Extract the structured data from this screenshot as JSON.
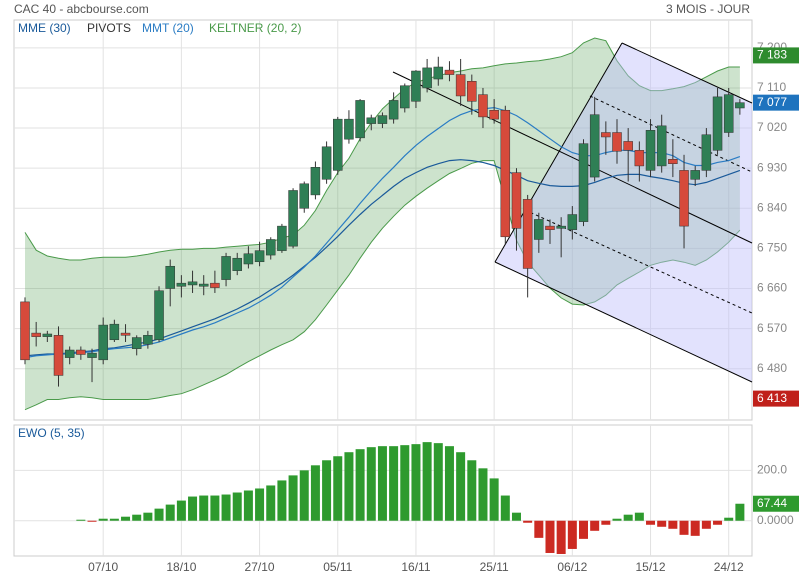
{
  "header": {
    "title": "CAC 40 - abcbourse.com",
    "period": "3 MOIS - JOUR"
  },
  "chart_data": [
    {
      "type": "candlestick",
      "categories": [
        null,
        null,
        null,
        null,
        null,
        null,
        null,
        "07/10",
        null,
        null,
        null,
        null,
        null,
        null,
        "18/10",
        null,
        null,
        null,
        null,
        null,
        null,
        "27/10",
        null,
        null,
        null,
        null,
        null,
        null,
        "05/11",
        null,
        null,
        null,
        null,
        null,
        null,
        "16/11",
        null,
        null,
        null,
        null,
        null,
        null,
        "25/11",
        null,
        null,
        null,
        null,
        null,
        null,
        "06/12",
        null,
        null,
        null,
        null,
        null,
        null,
        "15/12",
        null,
        null,
        null,
        null,
        null,
        null,
        "24/12",
        null
      ],
      "open": [
        6630,
        6560,
        6552,
        6555,
        6505,
        6522,
        6505,
        6500,
        6545,
        6560,
        6525,
        6535,
        6545,
        6660,
        6665,
        6668,
        6665,
        6672,
        6680,
        6700,
        6715,
        6720,
        6735,
        6745,
        6755,
        6840,
        6870,
        6905,
        6925,
        6995,
        6998,
        7030,
        7030,
        7040,
        7065,
        7080,
        7110,
        7130,
        7150,
        7140,
        7125,
        7095,
        7060,
        7060,
        6920,
        6860,
        6770,
        6800,
        6795,
        6792,
        6810,
        6910,
        7010,
        7010,
        6990,
        6970,
        6925,
        6935,
        6950,
        6925,
        6905,
        6925,
        6970,
        7010,
        7065
      ],
      "high": [
        6640,
        6585,
        6565,
        6575,
        6530,
        6530,
        6525,
        6595,
        6590,
        6580,
        6555,
        6565,
        6665,
        6725,
        6690,
        6700,
        6690,
        6700,
        6740,
        6740,
        6755,
        6765,
        6775,
        6805,
        6885,
        6900,
        6945,
        6990,
        7045,
        7060,
        7085,
        7050,
        7055,
        7100,
        7120,
        7150,
        7175,
        7180,
        7170,
        7175,
        7140,
        7110,
        7085,
        7070,
        6930,
        6870,
        6830,
        6815,
        6820,
        6845,
        6995,
        7090,
        7035,
        7040,
        7020,
        6990,
        7040,
        7050,
        6995,
        6960,
        6935,
        7020,
        7110,
        7110,
        7085
      ],
      "low": [
        6490,
        6530,
        6540,
        6440,
        6490,
        6500,
        6450,
        6490,
        6540,
        6540,
        6510,
        6525,
        6540,
        6620,
        6640,
        6650,
        6645,
        6650,
        6665,
        6690,
        6705,
        6710,
        6725,
        6740,
        6750,
        6830,
        6860,
        6895,
        6915,
        6985,
        6990,
        7015,
        7020,
        7030,
        7055,
        7065,
        7100,
        7115,
        7125,
        7070,
        7050,
        7020,
        7030,
        6760,
        6745,
        6640,
        6740,
        6760,
        6730,
        6770,
        6800,
        6900,
        6960,
        6940,
        6900,
        6900,
        6910,
        6920,
        6910,
        6750,
        6890,
        6910,
        6960,
        7000,
        7050
      ],
      "close": [
        6500,
        6552,
        6558,
        6465,
        6522,
        6512,
        6515,
        6578,
        6580,
        6555,
        6550,
        6555,
        6655,
        6710,
        6672,
        6675,
        6670,
        6662,
        6732,
        6728,
        6738,
        6745,
        6770,
        6800,
        6880,
        6895,
        6932,
        6978,
        7040,
        7040,
        7082,
        7043,
        7048,
        7082,
        7115,
        7148,
        7155,
        7157,
        7140,
        7092,
        7080,
        7045,
        7040,
        6776,
        6795,
        6705,
        6815,
        6792,
        6800,
        6826,
        6985,
        7050,
        7000,
        6968,
        6970,
        6935,
        7015,
        7025,
        6940,
        6800,
        6925,
        7005,
        7090,
        7095,
        7077
      ],
      "up_color": "#2f7f55",
      "down_color": "#d64a3b",
      "series": [
        {
          "name": "MME (30)",
          "color": "#1a5a9a",
          "values": [
            6509,
            6511,
            6513,
            6513,
            6516,
            6518,
            6520,
            6525,
            6527,
            6531,
            6536,
            6540,
            6547,
            6556,
            6565,
            6574,
            6583,
            6592,
            6603,
            6614,
            6627,
            6641,
            6657,
            6672,
            6690,
            6710,
            6730,
            6753,
            6777,
            6802,
            6826,
            6849,
            6869,
            6889,
            6907,
            6920,
            6932,
            6940,
            6947,
            6949,
            6947,
            6943,
            6936,
            6925,
            6914,
            6902,
            6896,
            6891,
            6889,
            6889,
            6891,
            6898,
            6907,
            6914,
            6916,
            6916,
            6911,
            6907,
            6902,
            6896,
            6893,
            6898,
            6907,
            6916,
            6925
          ]
        },
        {
          "name": "MMT (20)",
          "color": "#2a7cc4",
          "values": [
            6505,
            6509,
            6511,
            6513,
            6513,
            6516,
            6518,
            6522,
            6525,
            6527,
            6529,
            6534,
            6540,
            6549,
            6558,
            6567,
            6574,
            6583,
            6594,
            6605,
            6616,
            6630,
            6645,
            6663,
            6686,
            6708,
            6733,
            6762,
            6791,
            6820,
            6851,
            6880,
            6907,
            6932,
            6958,
            6981,
            7001,
            7019,
            7037,
            7050,
            7059,
            7063,
            7066,
            7059,
            7048,
            7032,
            7014,
            6996,
            6978,
            6965,
            6958,
            6958,
            6965,
            6970,
            6970,
            6965,
            6965,
            6965,
            6958,
            6943,
            6936,
            6936,
            6943,
            6947,
            6956
          ]
        }
      ],
      "band": {
        "name": "KELTNER (20, 2)",
        "color": "#4a9a4a",
        "upper": [
          6786,
          6746,
          6733,
          6728,
          6724,
          6724,
          6728,
          6730,
          6730,
          6730,
          6733,
          6737,
          6742,
          6746,
          6748,
          6748,
          6750,
          6750,
          6753,
          6755,
          6757,
          6759,
          6764,
          6773,
          6780,
          6802,
          6835,
          6880,
          6920,
          6952,
          6996,
          7032,
          7063,
          7086,
          7108,
          7122,
          7131,
          7137,
          7144,
          7148,
          7153,
          7155,
          7160,
          7164,
          7166,
          7169,
          7171,
          7175,
          7180,
          7189,
          7211,
          7222,
          7216,
          7171,
          7137,
          7115,
          7104,
          7104,
          7108,
          7113,
          7122,
          7135,
          7148,
          7157,
          7157
        ],
        "lower": [
          6388,
          6399,
          6411,
          6411,
          6415,
          6417,
          6415,
          6411,
          6411,
          6411,
          6411,
          6411,
          6415,
          6420,
          6424,
          6433,
          6444,
          6455,
          6467,
          6482,
          6496,
          6509,
          6522,
          6534,
          6545,
          6563,
          6590,
          6623,
          6657,
          6690,
          6728,
          6764,
          6795,
          6822,
          6847,
          6867,
          6885,
          6902,
          6918,
          6929,
          6941,
          6947,
          6947,
          6858,
          6768,
          6719,
          6690,
          6661,
          6639,
          6625,
          6623,
          6630,
          6645,
          6668,
          6683,
          6697,
          6712,
          6719,
          6724,
          6719,
          6712,
          6724,
          6742,
          6764,
          6791
        ]
      },
      "pivots": {
        "name": "PIVOTS",
        "color": "#333333"
      },
      "price_tags": [
        {
          "value": 7183,
          "label": "7 183",
          "color": "#2e8b2e"
        },
        {
          "value": 7077,
          "label": "7 077",
          "color": "#1e73be"
        },
        {
          "value": 6413,
          "label": "6 413",
          "color": "#c0201a"
        }
      ],
      "ylim": [
        6365,
        7240
      ],
      "yticks": [
        {
          "value": 6480,
          "label": "6 480"
        },
        {
          "value": 6570,
          "label": "6 570"
        },
        {
          "value": 6660,
          "label": "6 660"
        },
        {
          "value": 6750,
          "label": "6 750"
        },
        {
          "value": 6840,
          "label": "6 840"
        },
        {
          "value": 6930,
          "label": "6 930"
        },
        {
          "value": 7020,
          "label": "7 020"
        },
        {
          "value": 7110,
          "label": "7 110"
        },
        {
          "value": 7200,
          "label": "7 200"
        }
      ],
      "grid": true
    },
    {
      "type": "bar",
      "title": "EWO (5, 35)",
      "values": [
        null,
        null,
        null,
        null,
        null,
        4,
        -4,
        8,
        8,
        16,
        24,
        32,
        48,
        64,
        80,
        96,
        100,
        100,
        104,
        112,
        120,
        128,
        140,
        160,
        180,
        200,
        220,
        240,
        256,
        272,
        284,
        292,
        296,
        296,
        300,
        304,
        312,
        308,
        296,
        272,
        240,
        208,
        168,
        100,
        32,
        -8,
        -68,
        -128,
        -132,
        -112,
        -72,
        -40,
        -16,
        8,
        24,
        32,
        -16,
        -24,
        -32,
        -56,
        -60,
        -32,
        -16,
        12,
        67.44
      ],
      "up_color": "#2e9a2e",
      "down_color": "#cc2a22",
      "title_color": "#1a5a9a",
      "ylim": [
        -140,
        380
      ],
      "yticks": [
        {
          "value": 0,
          "label": "0.0000"
        },
        {
          "value": 200,
          "label": "200.0"
        }
      ],
      "grid": true
    }
  ]
}
